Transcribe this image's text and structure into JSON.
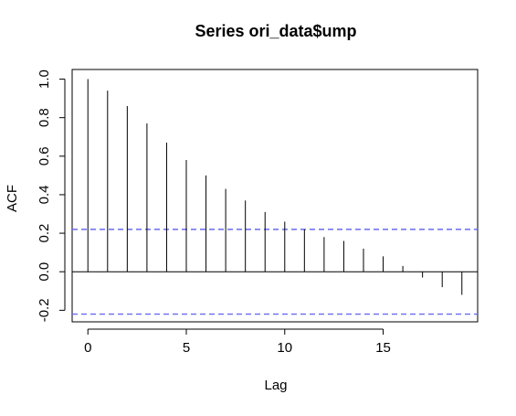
{
  "chart_data": {
    "type": "bar",
    "title": "Series  ori_data$ump",
    "xlabel": "Lag",
    "ylabel": "ACF",
    "xlim": [
      -0.8,
      19.8
    ],
    "ylim": [
      -0.26,
      1.05
    ],
    "x_ticks": [
      0,
      5,
      10,
      15
    ],
    "y_ticks": [
      -0.2,
      0.0,
      0.2,
      0.4,
      0.6,
      0.8,
      1.0
    ],
    "y_tick_labels": [
      "-0.2",
      "0.0",
      "0.2",
      "0.4",
      "0.6",
      "0.8",
      "1.0"
    ],
    "x_tick_labels": [
      "0",
      "5",
      "10",
      "15"
    ],
    "confidence_bound": 0.22,
    "confidence_color": "#6a6af0",
    "grid": false,
    "lags": [
      0,
      1,
      2,
      3,
      4,
      5,
      6,
      7,
      8,
      9,
      10,
      11,
      12,
      13,
      14,
      15,
      16,
      17,
      18,
      19
    ],
    "values": [
      1.0,
      0.94,
      0.86,
      0.77,
      0.67,
      0.58,
      0.5,
      0.43,
      0.37,
      0.31,
      0.26,
      0.22,
      0.18,
      0.16,
      0.12,
      0.08,
      0.03,
      -0.03,
      -0.08,
      -0.12
    ]
  }
}
